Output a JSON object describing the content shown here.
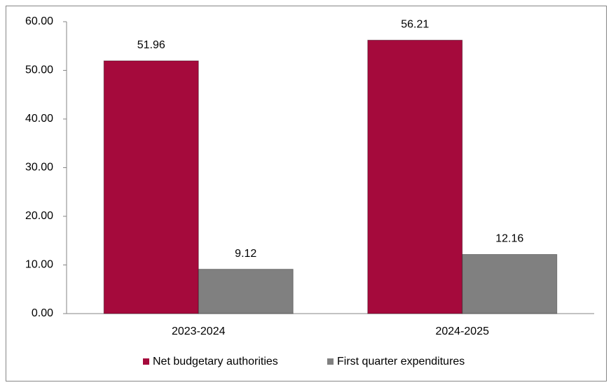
{
  "chart_data": {
    "type": "bar",
    "categories": [
      "2023-2024",
      "2024-2025"
    ],
    "series": [
      {
        "name": "Net budgetary authorities",
        "color": "#a50a3c",
        "values": [
          51.96,
          56.21
        ]
      },
      {
        "name": "First quarter expenditures",
        "color": "#808080",
        "values": [
          9.12,
          12.16
        ]
      }
    ],
    "ylim": [
      0,
      60
    ],
    "yticks": [
      {
        "value": 0,
        "label": "0.00"
      },
      {
        "value": 10,
        "label": "10.00"
      },
      {
        "value": 20,
        "label": "20.00"
      },
      {
        "value": 30,
        "label": "30.00"
      },
      {
        "value": 40,
        "label": "40.00"
      },
      {
        "value": 50,
        "label": "50.00"
      },
      {
        "value": 60,
        "label": "60.00"
      }
    ],
    "grid": false,
    "legend": "bottom"
  }
}
